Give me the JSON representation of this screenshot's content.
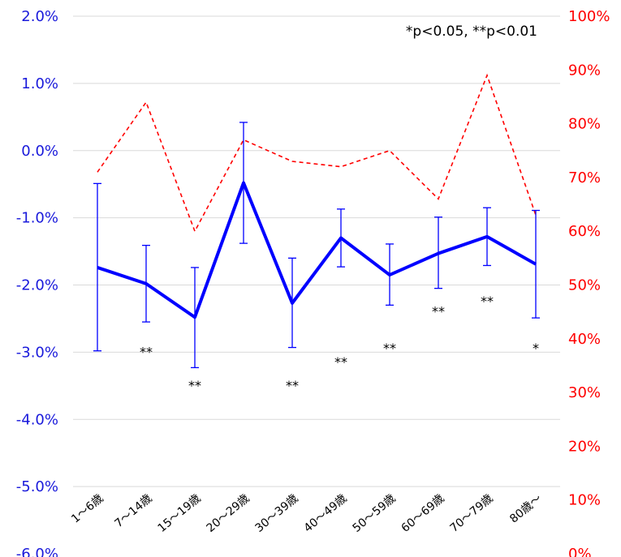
{
  "chart_data": {
    "type": "line",
    "categories": [
      "1〜6歳",
      "7〜14歳",
      "15〜19歳",
      "20〜29歳",
      "30〜39歳",
      "40〜49歳",
      "50〜59歳",
      "60〜69歳",
      "70〜79歳",
      "80歳〜"
    ],
    "left_axis": {
      "ylim": [
        -6.0,
        2.0
      ],
      "ticks": [
        "2.0%",
        "1.0%",
        "0.0%",
        "-1.0%",
        "-2.0%",
        "-3.0%",
        "-4.0%",
        "-5.0%",
        "-6.0%"
      ],
      "tick_values": [
        2,
        1,
        0,
        -1,
        -2,
        -3,
        -4,
        -5,
        -6
      ]
    },
    "right_axis": {
      "ylim": [
        0,
        100
      ],
      "ticks": [
        "100%",
        "90%",
        "80%",
        "70%",
        "60%",
        "50%",
        "40%",
        "30%",
        "20%",
        "10%",
        "0%"
      ],
      "tick_values": [
        100,
        90,
        80,
        70,
        60,
        50,
        40,
        30,
        20,
        10,
        0
      ]
    },
    "series": [
      {
        "axis": "left",
        "style": "solid",
        "color": "#0000ff",
        "values": [
          -1.74,
          -1.98,
          -2.48,
          -0.48,
          -2.27,
          -1.3,
          -1.85,
          -1.53,
          -1.28,
          -1.69
        ],
        "error_upper": [
          -0.49,
          -1.41,
          -1.74,
          0.42,
          -1.6,
          -0.87,
          -1.39,
          -0.99,
          -0.85,
          -0.89
        ],
        "error_lower": [
          -2.98,
          -2.55,
          -3.23,
          -1.38,
          -2.93,
          -1.73,
          -2.3,
          -2.05,
          -1.71,
          -2.49
        ]
      },
      {
        "axis": "right",
        "style": "dashed",
        "color": "#ff0000",
        "values": [
          71,
          84,
          60,
          77,
          73,
          72,
          75,
          66,
          89,
          63
        ]
      }
    ],
    "significance": [
      "",
      "**",
      "**",
      "",
      "**",
      "**",
      "**",
      "**",
      "**",
      "*"
    ],
    "significance_value": [
      null,
      -3.0,
      -3.5,
      null,
      -3.5,
      -3.15,
      -2.95,
      -2.4,
      -2.25,
      -2.95
    ],
    "annotation": "*p<0.05, **p<0.01",
    "grid": true
  }
}
